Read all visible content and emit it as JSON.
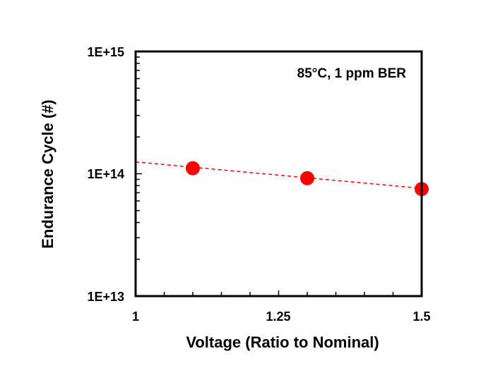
{
  "chart_data": {
    "type": "scatter",
    "title": "",
    "annotation": "85°C, 1 ppm BER",
    "xlabel": "Voltage (Ratio to Nominal)",
    "ylabel": "Endurance Cycle (#)",
    "xlim": [
      1,
      1.5
    ],
    "ylim": [
      10000000000000.0,
      1000000000000000.0
    ],
    "yscale": "log",
    "x_ticks": [
      1,
      1.25,
      1.5
    ],
    "x_tick_labels": [
      "1",
      "1.25",
      "1.5"
    ],
    "y_ticks": [
      10000000000000.0,
      100000000000000.0,
      1000000000000000.0
    ],
    "y_tick_labels": [
      "1E+13",
      "1E+14",
      "1E+15"
    ],
    "grid": false,
    "series": [
      {
        "x": [
          1.1,
          1.3,
          1.5
        ],
        "y": [
          111000000000000.0,
          92000000000000.0,
          75000000000000.0
        ],
        "color": "#ff0000",
        "marker": "circle"
      }
    ],
    "trendline": {
      "type": "exponential",
      "x": [
        1,
        1.5
      ],
      "y": [
        125000000000000.0,
        76000000000000.0
      ],
      "color": "#ff0000",
      "style": "dashed"
    }
  }
}
